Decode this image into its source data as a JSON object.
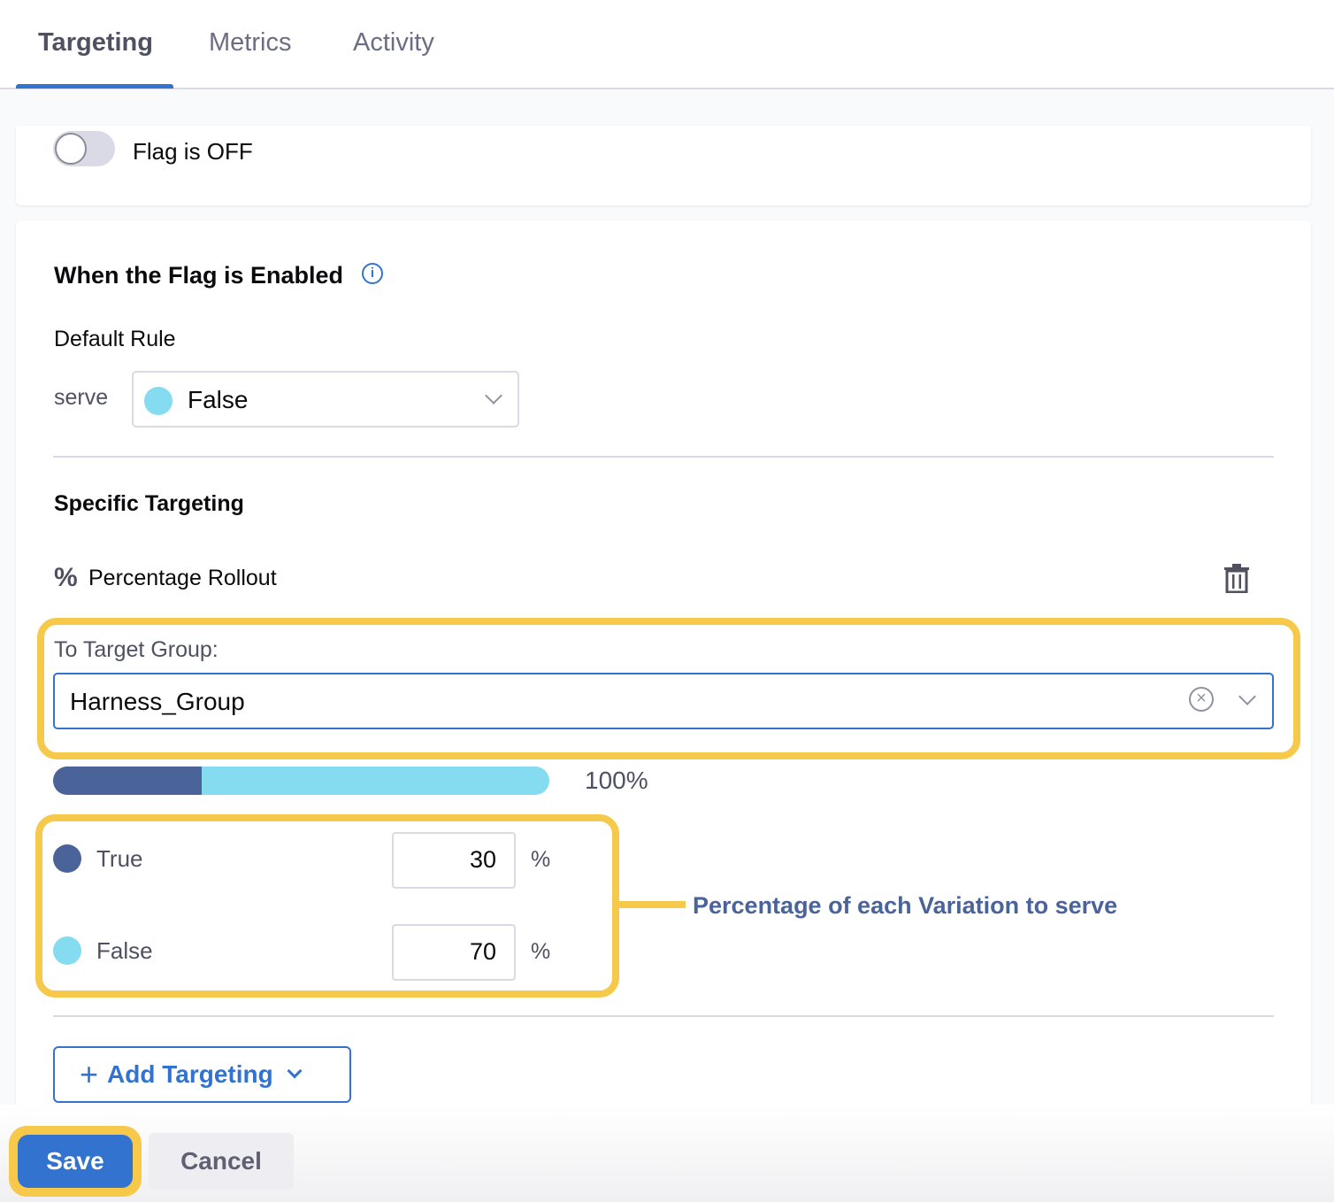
{
  "tabs": [
    {
      "label": "Targeting",
      "active": true
    },
    {
      "label": "Metrics"
    },
    {
      "label": "Activity"
    }
  ],
  "flag": {
    "label": "Flag is OFF",
    "on": false
  },
  "enabled": {
    "title": "When the Flag is Enabled",
    "info_icon": "info-icon",
    "default_rule": "Default Rule",
    "serve_label": "serve",
    "serve_value": "False",
    "serve_color": "#85dbef"
  },
  "specific": {
    "title": "Specific Targeting",
    "rollout_icon": "percent-icon",
    "rollout_label": "Percentage Rollout",
    "delete_icon": "trash-icon",
    "target_group_label": "To Target Group:",
    "target_group_value": "Harness_Group",
    "total": "100%",
    "variations": [
      {
        "name": "True",
        "value": "30",
        "unit": "%",
        "color": "#4a6399"
      },
      {
        "name": "False",
        "value": "70",
        "unit": "%",
        "color": "#85dbef"
      }
    ],
    "annotation": "Percentage of each Variation to serve"
  },
  "add_targeting": "Add Targeting",
  "footer": {
    "save": "Save",
    "cancel": "Cancel"
  },
  "colors": {
    "accent": "#3273d0",
    "highlight": "#f6c94b"
  }
}
